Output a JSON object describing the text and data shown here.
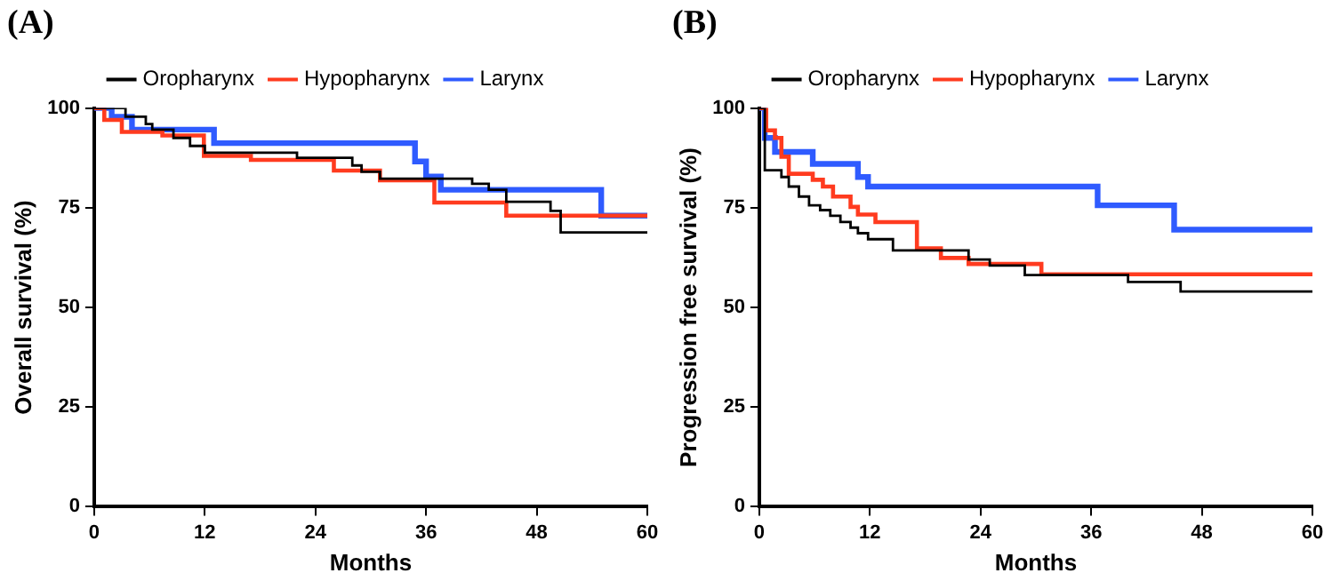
{
  "chart_data": [
    {
      "type": "step",
      "title": "(A)",
      "xlabel": "Months",
      "ylabel": "Overall survival (%)",
      "xlim": [
        0,
        60
      ],
      "xticks": [
        0,
        12,
        24,
        36,
        48,
        60
      ],
      "ylim": [
        0,
        100
      ],
      "yticks": [
        0,
        25,
        50,
        75,
        100
      ],
      "grid": false,
      "legend": "top",
      "marker": "none",
      "series": [
        {
          "name": "Oropharynx",
          "color": "#000000",
          "x": [
            0,
            3.4,
            5.6,
            6.3,
            8.6,
            10.4,
            12,
            22,
            28,
            29,
            31,
            41,
            42.8,
            44.7,
            49.5,
            50.6,
            60
          ],
          "values": [
            100,
            97.8,
            96,
            94.6,
            92.5,
            90.5,
            88.8,
            87.5,
            85.6,
            84,
            82.3,
            81,
            79.5,
            76.5,
            74.2,
            68.8,
            68.8
          ]
        },
        {
          "name": "Hypopharynx",
          "color": "#ff3b1f",
          "x": [
            0,
            1.1,
            3,
            7.4,
            11.9,
            17,
            26,
            31,
            36.9,
            44.7,
            60
          ],
          "values": [
            100,
            97,
            94,
            93.1,
            88,
            87,
            84.3,
            81.9,
            76.3,
            73,
            73
          ]
        },
        {
          "name": "Larynx",
          "color": "#2f5bff",
          "x": [
            0,
            1.9,
            4.1,
            13,
            34.8,
            36,
            37.6,
            55,
            60
          ],
          "values": [
            100,
            97.8,
            94.6,
            91.2,
            86.6,
            82.8,
            79.5,
            73,
            73
          ]
        }
      ]
    },
    {
      "type": "step",
      "title": "(B)",
      "xlabel": "Months",
      "ylabel": "Progression free survival (%)",
      "xlim": [
        0,
        60
      ],
      "xticks": [
        0,
        12,
        24,
        36,
        48,
        60
      ],
      "ylim": [
        0,
        100
      ],
      "yticks": [
        0,
        25,
        50,
        75,
        100
      ],
      "grid": false,
      "legend": "top",
      "marker": "none",
      "series": [
        {
          "name": "Oropharynx",
          "color": "#000000",
          "x": [
            0,
            0.6,
            2.4,
            3.2,
            4.3,
            5.4,
            6.6,
            7.7,
            8.8,
            9.9,
            10.7,
            11.8,
            14.5,
            22.7,
            25,
            28.8,
            40,
            45.7,
            60
          ],
          "values": [
            100,
            84.4,
            82.7,
            80.3,
            77.8,
            75.6,
            74.4,
            73,
            71.4,
            70,
            68.6,
            67.1,
            64.3,
            62,
            60.5,
            58.1,
            56.4,
            54,
            54
          ]
        },
        {
          "name": "Hypopharynx",
          "color": "#ff3b1f",
          "x": [
            0,
            0.75,
            1.7,
            2.4,
            3.2,
            5.8,
            6.9,
            8,
            9.9,
            10.7,
            12.6,
            17.1,
            19.7,
            22.7,
            30.6,
            60
          ],
          "values": [
            100,
            94.4,
            92.5,
            87.8,
            83.5,
            82,
            80.3,
            77.8,
            75.2,
            73.3,
            71.4,
            64.8,
            62.4,
            60.9,
            58.3,
            58.3
          ]
        },
        {
          "name": "Larynx",
          "color": "#2f5bff",
          "x": [
            0,
            0.6,
            1.7,
            5.8,
            10.7,
            11.8,
            36.7,
            45,
            60
          ],
          "values": [
            100,
            92.5,
            89,
            86,
            82.7,
            80.3,
            75.6,
            69.5,
            69.5
          ]
        }
      ]
    }
  ]
}
